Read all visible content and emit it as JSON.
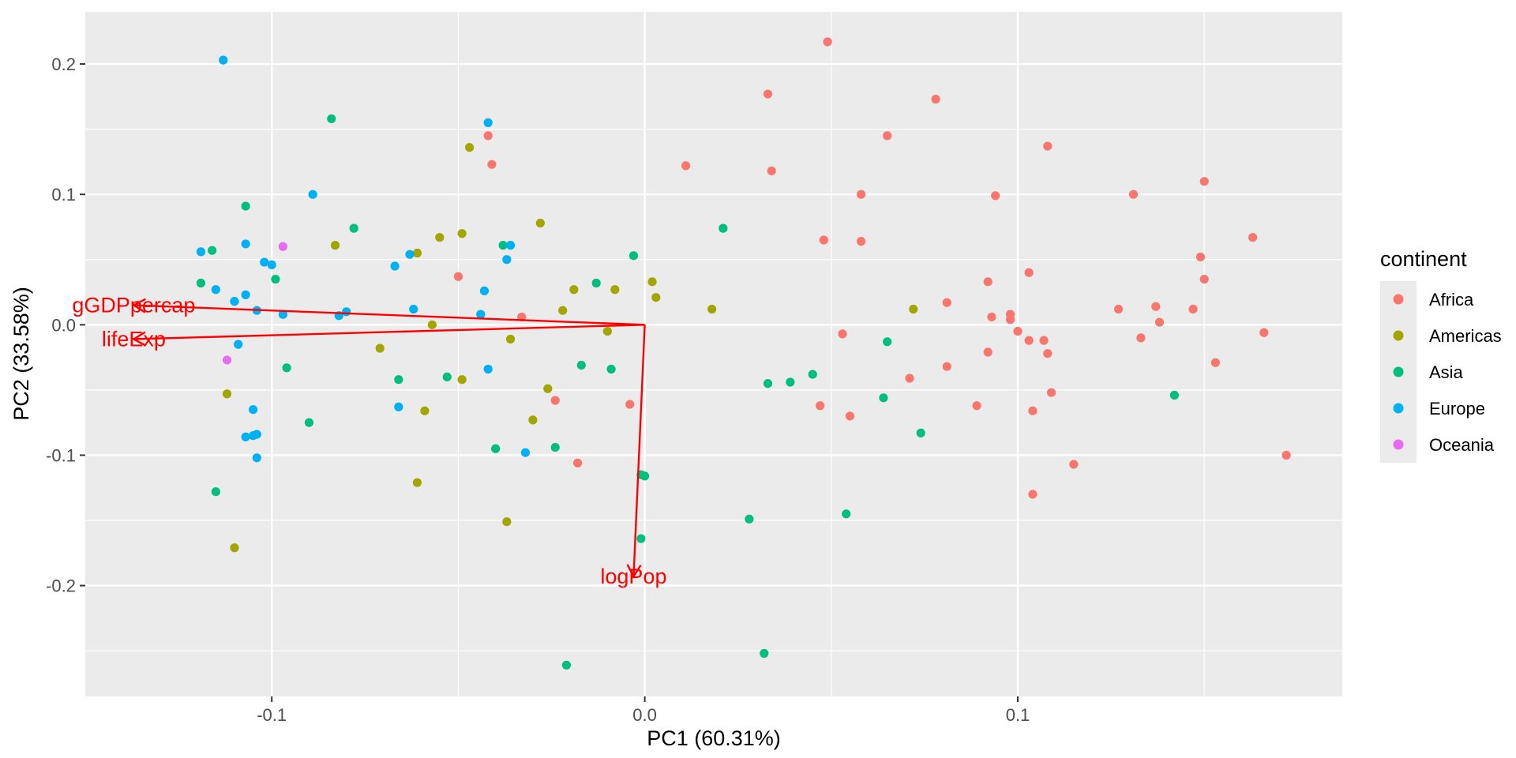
{
  "chart_data": {
    "type": "scatter",
    "title": "",
    "xlabel": "PC1 (60.31%)",
    "ylabel": "PC2 (33.58%)",
    "xlim": [
      -0.15,
      0.187
    ],
    "ylim": [
      -0.285,
      0.24
    ],
    "x_ticks": [
      -0.1,
      0.0,
      0.1
    ],
    "x_tick_labels": [
      "-0.1",
      "0.0",
      "0.1"
    ],
    "y_ticks": [
      -0.2,
      -0.1,
      0.0,
      0.1,
      0.2
    ],
    "y_tick_labels": [
      "-0.2",
      "-0.1",
      "0.0",
      "0.1",
      "0.2"
    ],
    "grid": true,
    "legend": {
      "title": "continent",
      "placement": "right",
      "entries": [
        "Africa",
        "Americas",
        "Asia",
        "Europe",
        "Oceania"
      ]
    },
    "colors": {
      "Africa": "#F8766D",
      "Americas": "#A3A500",
      "Asia": "#00BF7D",
      "Europe": "#00B0F6",
      "Oceania": "#E76BF3",
      "panel": "#EBEBEB",
      "grid": "#FFFFFF",
      "vector": "#FF0000"
    },
    "loadings": [
      {
        "label": "gGDPpercap",
        "x": -0.137,
        "y": 0.015
      },
      {
        "label": "lifeExp",
        "x": -0.137,
        "y": -0.011
      },
      {
        "label": "logPop",
        "x": -0.003,
        "y": -0.193
      }
    ],
    "series": [
      {
        "name": "Africa",
        "points": [
          [
            0.049,
            0.217
          ],
          [
            0.033,
            0.177
          ],
          [
            0.078,
            0.173
          ],
          [
            0.065,
            0.145
          ],
          [
            0.108,
            0.137
          ],
          [
            0.011,
            0.122
          ],
          [
            0.034,
            0.118
          ],
          [
            0.15,
            0.11
          ],
          [
            0.058,
            0.1
          ],
          [
            0.094,
            0.099
          ],
          [
            0.131,
            0.1
          ],
          [
            0.048,
            0.065
          ],
          [
            0.058,
            0.064
          ],
          [
            0.163,
            0.067
          ],
          [
            0.149,
            0.052
          ],
          [
            0.103,
            0.04
          ],
          [
            0.15,
            0.035
          ],
          [
            0.092,
            0.033
          ],
          [
            0.081,
            0.017
          ],
          [
            0.127,
            0.012
          ],
          [
            0.137,
            0.014
          ],
          [
            0.147,
            0.012
          ],
          [
            0.093,
            0.006
          ],
          [
            0.098,
            0.004
          ],
          [
            0.098,
            0.008
          ],
          [
            0.138,
            0.002
          ],
          [
            0.1,
            -0.005
          ],
          [
            0.053,
            -0.007
          ],
          [
            0.103,
            -0.012
          ],
          [
            0.107,
            -0.012
          ],
          [
            0.133,
            -0.01
          ],
          [
            0.166,
            -0.006
          ],
          [
            0.092,
            -0.021
          ],
          [
            0.108,
            -0.022
          ],
          [
            0.153,
            -0.029
          ],
          [
            0.081,
            -0.032
          ],
          [
            0.071,
            -0.041
          ],
          [
            0.109,
            -0.052
          ],
          [
            0.047,
            -0.062
          ],
          [
            0.089,
            -0.062
          ],
          [
            0.055,
            -0.07
          ],
          [
            0.104,
            -0.066
          ],
          [
            0.172,
            -0.1
          ],
          [
            0.115,
            -0.107
          ],
          [
            0.104,
            -0.13
          ],
          [
            -0.018,
            -0.106
          ],
          [
            -0.004,
            -0.061
          ],
          [
            -0.024,
            -0.058
          ],
          [
            -0.033,
            0.006
          ],
          [
            -0.05,
            0.037
          ],
          [
            -0.042,
            0.145
          ],
          [
            -0.041,
            0.123
          ]
        ]
      },
      {
        "name": "Americas",
        "points": [
          [
            -0.047,
            0.136
          ],
          [
            -0.028,
            0.078
          ],
          [
            -0.049,
            0.07
          ],
          [
            -0.055,
            0.067
          ],
          [
            -0.083,
            0.061
          ],
          [
            -0.061,
            0.055
          ],
          [
            0.002,
            0.033
          ],
          [
            0.003,
            0.021
          ],
          [
            -0.019,
            0.027
          ],
          [
            -0.008,
            0.027
          ],
          [
            0.018,
            0.012
          ],
          [
            0.072,
            0.012
          ],
          [
            -0.022,
            0.011
          ],
          [
            -0.057,
            0.0
          ],
          [
            -0.01,
            -0.005
          ],
          [
            -0.036,
            -0.011
          ],
          [
            -0.071,
            -0.018
          ],
          [
            -0.049,
            -0.042
          ],
          [
            -0.026,
            -0.049
          ],
          [
            -0.059,
            -0.066
          ],
          [
            -0.03,
            -0.073
          ],
          [
            -0.112,
            -0.053
          ],
          [
            -0.061,
            -0.121
          ],
          [
            -0.037,
            -0.151
          ],
          [
            -0.11,
            -0.171
          ]
        ]
      },
      {
        "name": "Asia",
        "points": [
          [
            -0.084,
            0.158
          ],
          [
            -0.107,
            0.091
          ],
          [
            -0.078,
            0.074
          ],
          [
            0.021,
            0.074
          ],
          [
            -0.038,
            0.061
          ],
          [
            -0.116,
            0.057
          ],
          [
            -0.003,
            0.053
          ],
          [
            -0.099,
            0.035
          ],
          [
            -0.119,
            0.032
          ],
          [
            -0.013,
            0.032
          ],
          [
            0.065,
            -0.013
          ],
          [
            -0.096,
            -0.033
          ],
          [
            -0.017,
            -0.031
          ],
          [
            -0.009,
            -0.034
          ],
          [
            -0.053,
            -0.04
          ],
          [
            -0.066,
            -0.042
          ],
          [
            0.045,
            -0.038
          ],
          [
            0.033,
            -0.045
          ],
          [
            0.039,
            -0.044
          ],
          [
            0.064,
            -0.056
          ],
          [
            0.142,
            -0.054
          ],
          [
            -0.09,
            -0.075
          ],
          [
            0.074,
            -0.083
          ],
          [
            -0.024,
            -0.094
          ],
          [
            -0.04,
            -0.095
          ],
          [
            -0.001,
            -0.115
          ],
          [
            0.0,
            -0.116
          ],
          [
            -0.115,
            -0.128
          ],
          [
            0.028,
            -0.149
          ],
          [
            0.054,
            -0.145
          ],
          [
            -0.001,
            -0.164
          ],
          [
            0.032,
            -0.252
          ],
          [
            -0.021,
            -0.261
          ]
        ]
      },
      {
        "name": "Europe",
        "points": [
          [
            -0.113,
            0.203
          ],
          [
            -0.042,
            0.155
          ],
          [
            -0.089,
            0.1
          ],
          [
            -0.107,
            0.062
          ],
          [
            -0.036,
            0.061
          ],
          [
            -0.119,
            0.056
          ],
          [
            -0.102,
            0.048
          ],
          [
            -0.1,
            0.046
          ],
          [
            -0.063,
            0.054
          ],
          [
            -0.037,
            0.05
          ],
          [
            -0.067,
            0.045
          ],
          [
            -0.115,
            0.027
          ],
          [
            -0.043,
            0.026
          ],
          [
            -0.107,
            0.023
          ],
          [
            -0.11,
            0.018
          ],
          [
            -0.062,
            0.012
          ],
          [
            -0.104,
            0.011
          ],
          [
            -0.08,
            0.01
          ],
          [
            -0.097,
            0.008
          ],
          [
            -0.082,
            0.007
          ],
          [
            -0.044,
            0.008
          ],
          [
            -0.109,
            -0.015
          ],
          [
            -0.042,
            -0.034
          ],
          [
            -0.105,
            -0.065
          ],
          [
            -0.066,
            -0.063
          ],
          [
            -0.107,
            -0.086
          ],
          [
            -0.105,
            -0.085
          ],
          [
            -0.104,
            -0.084
          ],
          [
            -0.032,
            -0.098
          ],
          [
            -0.104,
            -0.102
          ]
        ]
      },
      {
        "name": "Oceania",
        "points": [
          [
            -0.097,
            0.06
          ],
          [
            -0.112,
            -0.027
          ]
        ]
      }
    ]
  }
}
